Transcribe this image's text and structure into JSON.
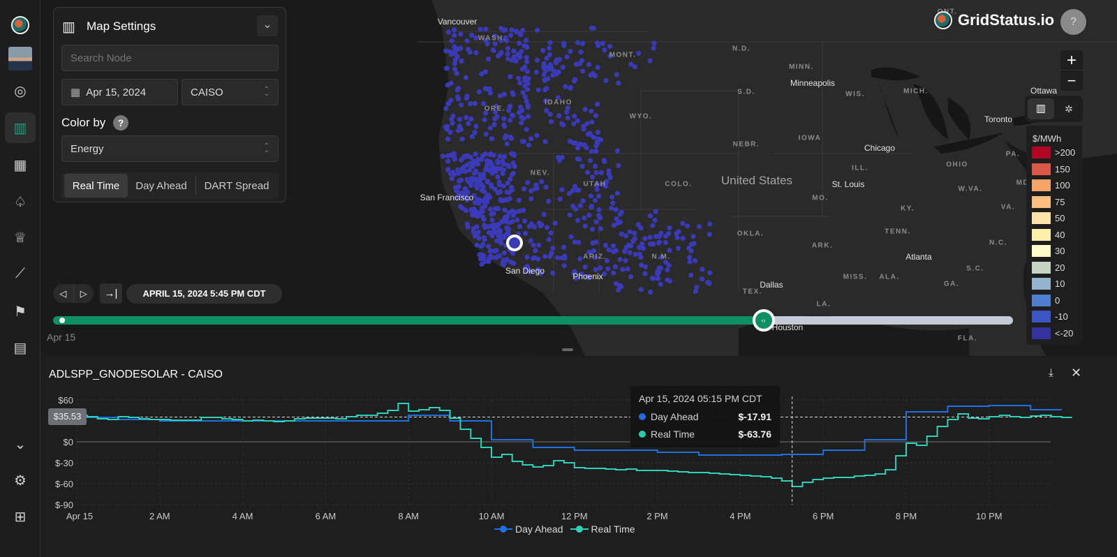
{
  "app": {
    "brand": "GridStatus.io",
    "help": "?"
  },
  "sidebar": {
    "items": [
      {
        "name": "logo",
        "icon": "gridstatus-logo"
      },
      {
        "name": "avatar",
        "icon": "user-avatar"
      },
      {
        "name": "live",
        "icon": "radar-icon"
      },
      {
        "name": "map",
        "icon": "map-icon",
        "active": true
      },
      {
        "name": "dashboards",
        "icon": "dashboard-icon"
      },
      {
        "name": "alerts",
        "icon": "bell-icon"
      },
      {
        "name": "leaderboard",
        "icon": "trophy-icon"
      },
      {
        "name": "charts",
        "icon": "chart-icon"
      },
      {
        "name": "flags",
        "icon": "flag-icon"
      },
      {
        "name": "tables",
        "icon": "table-icon"
      },
      {
        "name": "collapse",
        "icon": "chevron-down-icon"
      },
      {
        "name": "settings",
        "icon": "gear-icon"
      },
      {
        "name": "apps",
        "icon": "add-apps-icon"
      }
    ]
  },
  "settings": {
    "title": "Map Settings",
    "search_placeholder": "Search Node",
    "date": "Apr 15, 2024",
    "iso": "CAISO",
    "color_by_label": "Color by",
    "color_by_help": "?",
    "color_by": "Energy",
    "modes": [
      "Real Time",
      "Day Ahead",
      "DART Spread"
    ],
    "active_mode": "Real Time"
  },
  "map": {
    "zoom_in": "+",
    "zoom_out": "−",
    "labels": [
      "Vancouver",
      "WASH.",
      "MONT.",
      "N.D.",
      "MINN.",
      "ONT.",
      "Minneapolis",
      "WIS.",
      "MICH.",
      "Ottawa",
      "IDAHO",
      "ORE.",
      "S.D.",
      "WYO.",
      "Toronto",
      "NEBR.",
      "IOWA",
      "Chicago",
      "PA.",
      "OHIO",
      "NEV.",
      "UTAH",
      "COLO.",
      "United States",
      "ILL.",
      "St. Louis",
      "MO.",
      "KY.",
      "W.VA.",
      "VA.",
      "MD.",
      "San Francisco",
      "OKLA.",
      "TENN.",
      "ARK.",
      "N.C.",
      "Atlanta",
      "S.C.",
      "ARIZ.",
      "N.M.",
      "MISS.",
      "ALA.",
      "GA.",
      "San Diego",
      "Phoenix",
      "TEX.",
      "Dallas",
      "LA.",
      "Houston",
      "FLA."
    ],
    "legend": {
      "title": "$/MWh",
      "items": [
        {
          "label": ">200",
          "color": "#b40426"
        },
        {
          "label": "150",
          "color": "#d95847"
        },
        {
          "label": "100",
          "color": "#f7a468"
        },
        {
          "label": "75",
          "color": "#fbbf7f"
        },
        {
          "label": "50",
          "color": "#fde3a7"
        },
        {
          "label": "40",
          "color": "#fdeea9"
        },
        {
          "label": "30",
          "color": "#fefcc8"
        },
        {
          "label": "20",
          "color": "#c7d4c4"
        },
        {
          "label": "10",
          "color": "#93b3cf"
        },
        {
          "label": "0",
          "color": "#4f7fcf"
        },
        {
          "label": "-10",
          "color": "#3b56c4"
        },
        {
          "label": "<-20",
          "color": "#33329e"
        }
      ]
    },
    "node_color": "#3a3ab8"
  },
  "timeline": {
    "current": "APRIL 15, 2024 5:45 PM CDT",
    "start_label": "Apr 15",
    "progress_pct": 74,
    "played_color": "#0e8f64",
    "rest_color": "#c4cad6"
  },
  "chart_data": {
    "type": "line",
    "title": "ADLSPP_GNODESOLAR - CAISO",
    "x_ticks": [
      "Apr 15",
      "2 AM",
      "4 AM",
      "6 AM",
      "8 AM",
      "10 AM",
      "12 PM",
      "2 PM",
      "4 PM",
      "6 PM",
      "8 PM",
      "10 PM"
    ],
    "y_ticks": [
      "$60",
      "$0",
      "$-30",
      "$-60",
      "$-90"
    ],
    "ylim": [
      -90,
      60
    ],
    "reference_line": {
      "label": "$35.53",
      "value": 35.53
    },
    "hours": [
      "00:00",
      "01:00",
      "02:00",
      "03:00",
      "04:00",
      "05:00",
      "06:00",
      "07:00",
      "08:00",
      "09:00",
      "10:00",
      "11:00",
      "12:00",
      "13:00",
      "14:00",
      "15:00",
      "16:00",
      "17:00",
      "18:00",
      "19:00",
      "20:00",
      "21:00",
      "22:00",
      "23:00"
    ],
    "series": [
      {
        "name": "Day Ahead",
        "color": "#1f6fe5",
        "values": [
          35,
          32,
          30,
          30,
          30,
          30,
          30,
          30,
          38,
          30,
          3,
          -8,
          -12,
          -12,
          -15,
          -19,
          -19,
          -18,
          -12,
          3,
          43,
          51,
          52,
          46
        ]
      },
      {
        "name": "Real Time",
        "color": "#2ed3b7",
        "quarter_hour_values": [
          [
            38,
            36,
            33,
            32
          ],
          [
            36,
            35,
            33,
            32
          ],
          [
            32,
            31,
            31,
            31
          ],
          [
            35,
            35,
            33,
            32
          ],
          [
            30,
            31,
            30,
            29
          ],
          [
            30,
            33,
            34,
            34
          ],
          [
            34,
            33,
            36,
            38
          ],
          [
            38,
            41,
            45,
            55
          ],
          [
            44,
            46,
            49,
            45
          ],
          [
            34,
            18,
            5,
            -8
          ],
          [
            -22,
            -18,
            -28,
            -33
          ],
          [
            -36,
            -34,
            -27,
            -30
          ],
          [
            -37,
            -38,
            -38,
            -39
          ],
          [
            -40,
            -39,
            -41,
            -41
          ],
          [
            -41,
            -42,
            -43,
            -44
          ],
          [
            -44,
            -45,
            -46,
            -47
          ],
          [
            -48,
            -49,
            -50,
            -52
          ],
          [
            -56,
            -64,
            -58,
            -54
          ],
          [
            -52,
            -51,
            -51,
            -49
          ],
          [
            -48,
            -46,
            -40,
            -20
          ],
          [
            -2,
            -5,
            8,
            22
          ],
          [
            32,
            40,
            34,
            33
          ],
          [
            36,
            38,
            36,
            35
          ],
          [
            37,
            38,
            36,
            35
          ]
        ]
      }
    ],
    "tooltip": {
      "time": "Apr 15, 2024 05:15 PM CDT",
      "rows": [
        {
          "label": "Day Ahead",
          "value": "$-17.91"
        },
        {
          "label": "Real Time",
          "value": "$-63.76"
        }
      ],
      "hour": 17.25
    },
    "legend": [
      "Day Ahead",
      "Real Time"
    ]
  }
}
